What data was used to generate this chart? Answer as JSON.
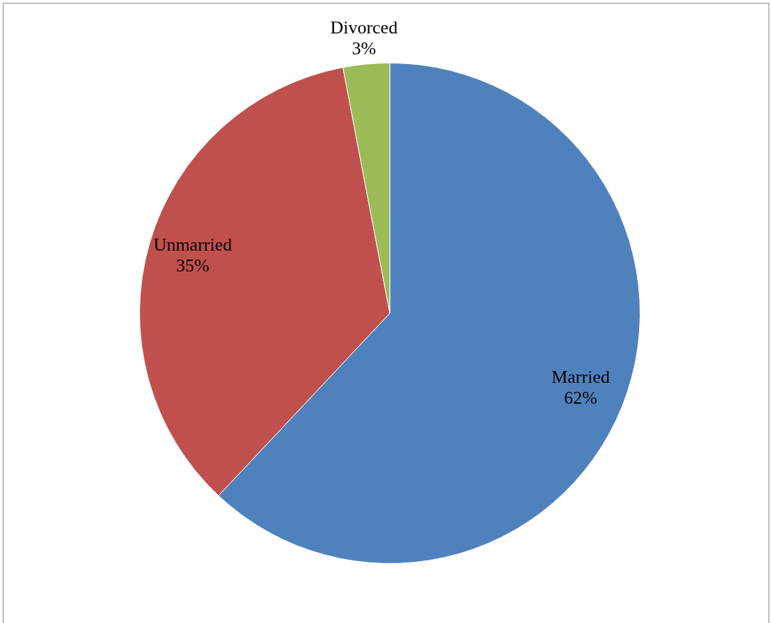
{
  "chart_data": {
    "type": "pie",
    "categories": [
      "Married",
      "Unmarried",
      "Divorced"
    ],
    "values": [
      62,
      35,
      3
    ],
    "colors": [
      "#4f81bd",
      "#c0504d",
      "#9bbb59"
    ],
    "value_labels": [
      "62%",
      "35%",
      "3%"
    ],
    "legend": false
  }
}
